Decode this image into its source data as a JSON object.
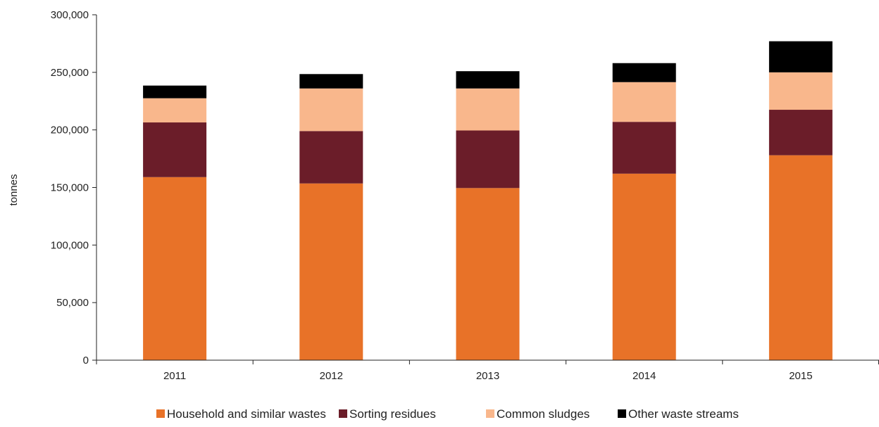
{
  "chart_data": {
    "type": "bar",
    "stacked": true,
    "title": "",
    "xlabel": "",
    "ylabel": "tonnes",
    "ylim": [
      0,
      300000
    ],
    "y_ticks": [
      0,
      50000,
      100000,
      150000,
      200000,
      250000,
      300000
    ],
    "y_tick_labels": [
      "0",
      "50,000",
      "100,000",
      "150,000",
      "200,000",
      "250,000",
      "300,000"
    ],
    "categories": [
      "2011",
      "2012",
      "2013",
      "2014",
      "2015"
    ],
    "series": [
      {
        "name": "Household and similar wastes",
        "color": "#e87228",
        "values": [
          159000,
          153500,
          149500,
          162000,
          178000
        ]
      },
      {
        "name": "Sorting residues",
        "color": "#6b1d29",
        "values": [
          47500,
          45500,
          50000,
          45000,
          39500
        ]
      },
      {
        "name": "Common sludges",
        "color": "#f9b78c",
        "values": [
          21000,
          37000,
          36500,
          34500,
          32500
        ]
      },
      {
        "name": "Other waste streams",
        "color": "#000000",
        "values": [
          11000,
          12500,
          15000,
          16500,
          27000
        ]
      }
    ],
    "grid": false,
    "legend_position": "bottom"
  }
}
